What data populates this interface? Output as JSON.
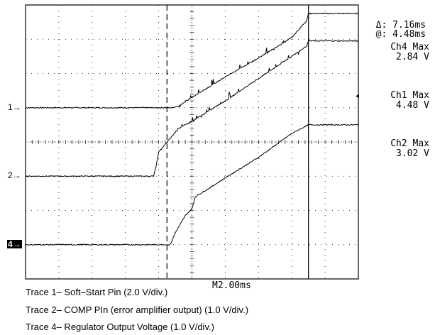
{
  "chart_data": {
    "type": "line",
    "title": "",
    "xlabel": "",
    "ylabel": "",
    "grid": true,
    "x_divisions": 10,
    "y_divisions": 8,
    "timebase": "M2.00ms",
    "cursor": {
      "delta": "7.16ms",
      "at": "4.48ms"
    },
    "channel_markers": [
      {
        "id": "trace1",
        "label": "1",
        "level_div": 5.0,
        "filled": false
      },
      {
        "id": "trace2",
        "label": "2",
        "level_div": 3.0,
        "filled": false
      },
      {
        "id": "trace4",
        "label": "4",
        "level_div": 1.0,
        "filled": true
      }
    ],
    "measurements": [
      {
        "name": "Ch4 Max",
        "value": "2.84 V",
        "level_div": 8.0
      },
      {
        "name": "Ch1 Max",
        "value": "4.48 V",
        "level_div": 6.2
      },
      {
        "name": "Ch2 Max",
        "value": "3.02 V",
        "level_div": 4.3
      }
    ],
    "series": [
      {
        "name": "Trace 1",
        "points": [
          [
            0,
            5.0
          ],
          [
            4.4,
            5.0
          ],
          [
            4.6,
            5.05
          ],
          [
            5.0,
            5.3
          ],
          [
            6.0,
            5.9
          ],
          [
            7.0,
            6.45
          ],
          [
            8.0,
            7.05
          ],
          [
            8.45,
            7.55
          ],
          [
            8.5,
            7.75
          ],
          [
            9.2,
            7.75
          ],
          [
            10,
            7.75
          ]
        ]
      },
      {
        "name": "Trace 2",
        "points": [
          [
            0,
            3.0
          ],
          [
            3.85,
            3.0
          ],
          [
            3.95,
            3.45
          ],
          [
            4.0,
            3.7
          ],
          [
            4.3,
            4.05
          ],
          [
            4.6,
            4.4
          ],
          [
            5.0,
            4.6
          ],
          [
            6.0,
            5.2
          ],
          [
            7.0,
            5.85
          ],
          [
            8.0,
            6.5
          ],
          [
            8.45,
            6.8
          ],
          [
            8.5,
            6.95
          ],
          [
            9.2,
            6.95
          ],
          [
            10,
            6.95
          ]
        ]
      },
      {
        "name": "Trace 4",
        "points": [
          [
            0,
            1.0
          ],
          [
            4.35,
            1.0
          ],
          [
            4.5,
            1.35
          ],
          [
            4.8,
            1.85
          ],
          [
            5.0,
            2.05
          ],
          [
            5.1,
            2.4
          ],
          [
            5.6,
            2.7
          ],
          [
            6.0,
            2.95
          ],
          [
            7.0,
            3.55
          ],
          [
            7.5,
            3.9
          ],
          [
            8.0,
            4.25
          ],
          [
            8.5,
            4.5
          ],
          [
            9.2,
            4.5
          ],
          [
            10,
            4.5
          ]
        ]
      }
    ],
    "reference_cursor_div": 4.25,
    "trigger_cursor_div": 8.5
  },
  "captions": [
    "Trace 1– Soft–Start Pin (2.0 V/div.)",
    "Trace 2– COMP PIn (error amplifier output) (1.0 V/div.)",
    "Trace 4– Regulator Output Voltage (1.0 V/div.)"
  ]
}
